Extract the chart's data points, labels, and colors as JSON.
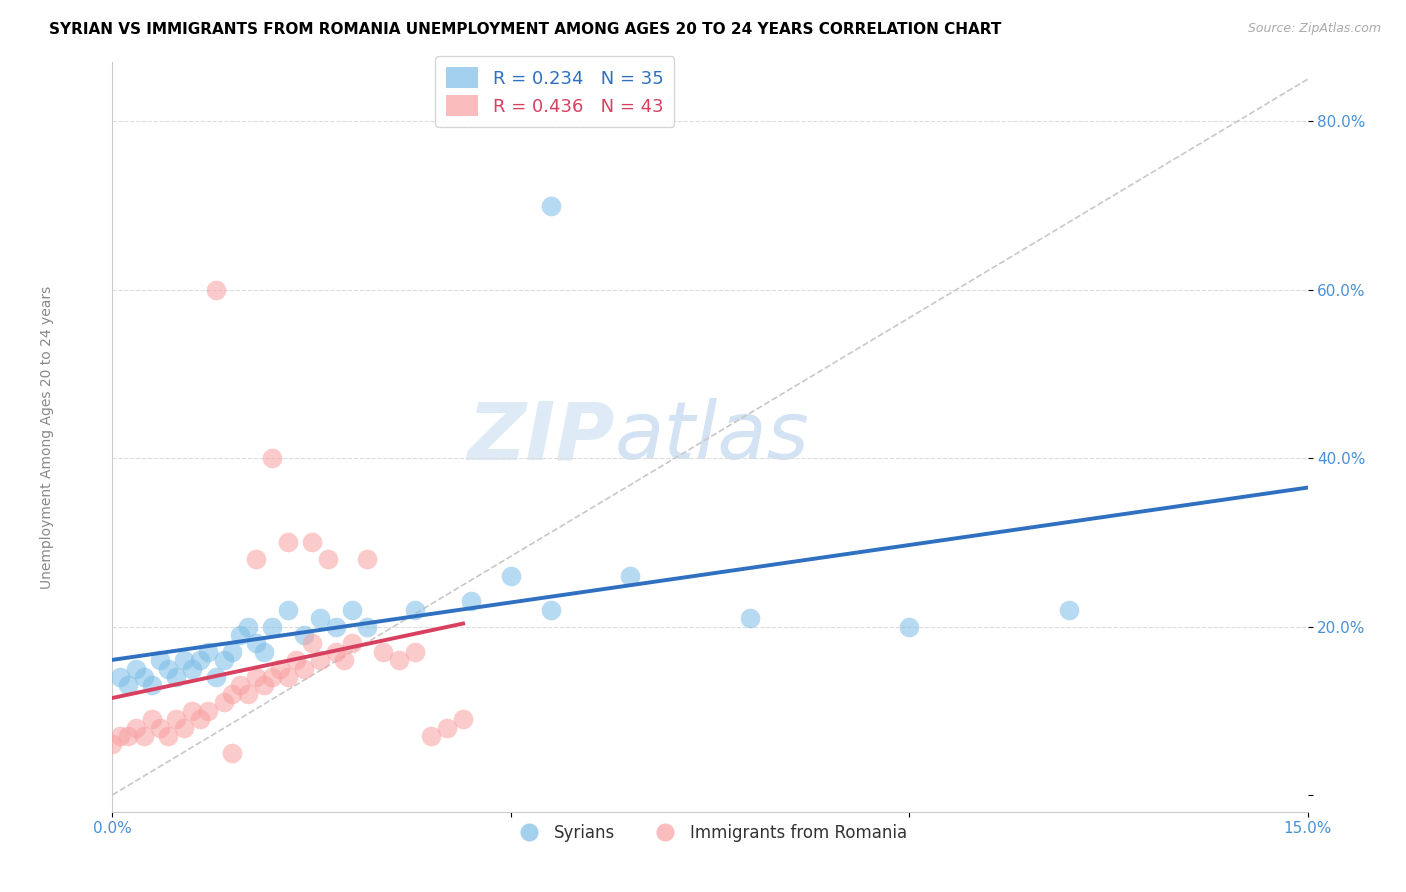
{
  "title": "SYRIAN VS IMMIGRANTS FROM ROMANIA UNEMPLOYMENT AMONG AGES 20 TO 24 YEARS CORRELATION CHART",
  "source": "Source: ZipAtlas.com",
  "ylabel": "Unemployment Among Ages 20 to 24 years",
  "xlim": [
    0.0,
    0.15
  ],
  "ylim": [
    -0.02,
    0.87
  ],
  "xticks": [
    0.0,
    0.05,
    0.1,
    0.15
  ],
  "xticklabels": [
    "0.0%",
    "",
    "",
    "15.0%"
  ],
  "yticks": [
    0.0,
    0.2,
    0.4,
    0.6,
    0.8
  ],
  "yticklabels": [
    "",
    "20.0%",
    "40.0%",
    "60.0%",
    "80.0%"
  ],
  "legend_blue_label": "R = 0.234   N = 35",
  "legend_pink_label": "R = 0.436   N = 43",
  "syrians_label": "Syrians",
  "romania_label": "Immigrants from Romania",
  "blue_color": "#7bbce6",
  "pink_color": "#f8a0a0",
  "blue_line_color": "#3070c0",
  "pink_line_color": "#d84060",
  "diagonal_color": "#c8c8c8",
  "watermark_zip": "ZIP",
  "watermark_atlas": "atlas",
  "title_fontsize": 11,
  "axis_fontsize": 10,
  "tick_fontsize": 11,
  "syrians_x": [
    0.001,
    0.002,
    0.003,
    0.004,
    0.005,
    0.006,
    0.007,
    0.008,
    0.009,
    0.01,
    0.011,
    0.012,
    0.013,
    0.014,
    0.015,
    0.016,
    0.017,
    0.018,
    0.019,
    0.02,
    0.022,
    0.024,
    0.026,
    0.028,
    0.03,
    0.032,
    0.038,
    0.045,
    0.05,
    0.055,
    0.065,
    0.08,
    0.1,
    0.12,
    0.055
  ],
  "syrians_y": [
    0.14,
    0.13,
    0.15,
    0.14,
    0.13,
    0.16,
    0.15,
    0.14,
    0.16,
    0.15,
    0.16,
    0.17,
    0.14,
    0.16,
    0.17,
    0.19,
    0.2,
    0.18,
    0.17,
    0.2,
    0.22,
    0.19,
    0.21,
    0.2,
    0.22,
    0.2,
    0.22,
    0.23,
    0.26,
    0.22,
    0.26,
    0.21,
    0.2,
    0.22,
    0.7
  ],
  "romania_x": [
    0.0,
    0.001,
    0.002,
    0.003,
    0.004,
    0.005,
    0.006,
    0.007,
    0.008,
    0.009,
    0.01,
    0.011,
    0.012,
    0.013,
    0.014,
    0.015,
    0.016,
    0.017,
    0.018,
    0.019,
    0.02,
    0.021,
    0.022,
    0.023,
    0.024,
    0.025,
    0.026,
    0.027,
    0.028,
    0.029,
    0.03,
    0.032,
    0.034,
    0.036,
    0.038,
    0.04,
    0.042,
    0.044,
    0.02,
    0.022,
    0.018,
    0.025,
    0.015
  ],
  "romania_y": [
    0.06,
    0.07,
    0.07,
    0.08,
    0.07,
    0.09,
    0.08,
    0.07,
    0.09,
    0.08,
    0.1,
    0.09,
    0.1,
    0.6,
    0.11,
    0.12,
    0.13,
    0.12,
    0.14,
    0.13,
    0.14,
    0.15,
    0.14,
    0.16,
    0.15,
    0.3,
    0.16,
    0.28,
    0.17,
    0.16,
    0.18,
    0.28,
    0.17,
    0.16,
    0.17,
    0.07,
    0.08,
    0.09,
    0.4,
    0.3,
    0.28,
    0.18,
    0.05
  ]
}
